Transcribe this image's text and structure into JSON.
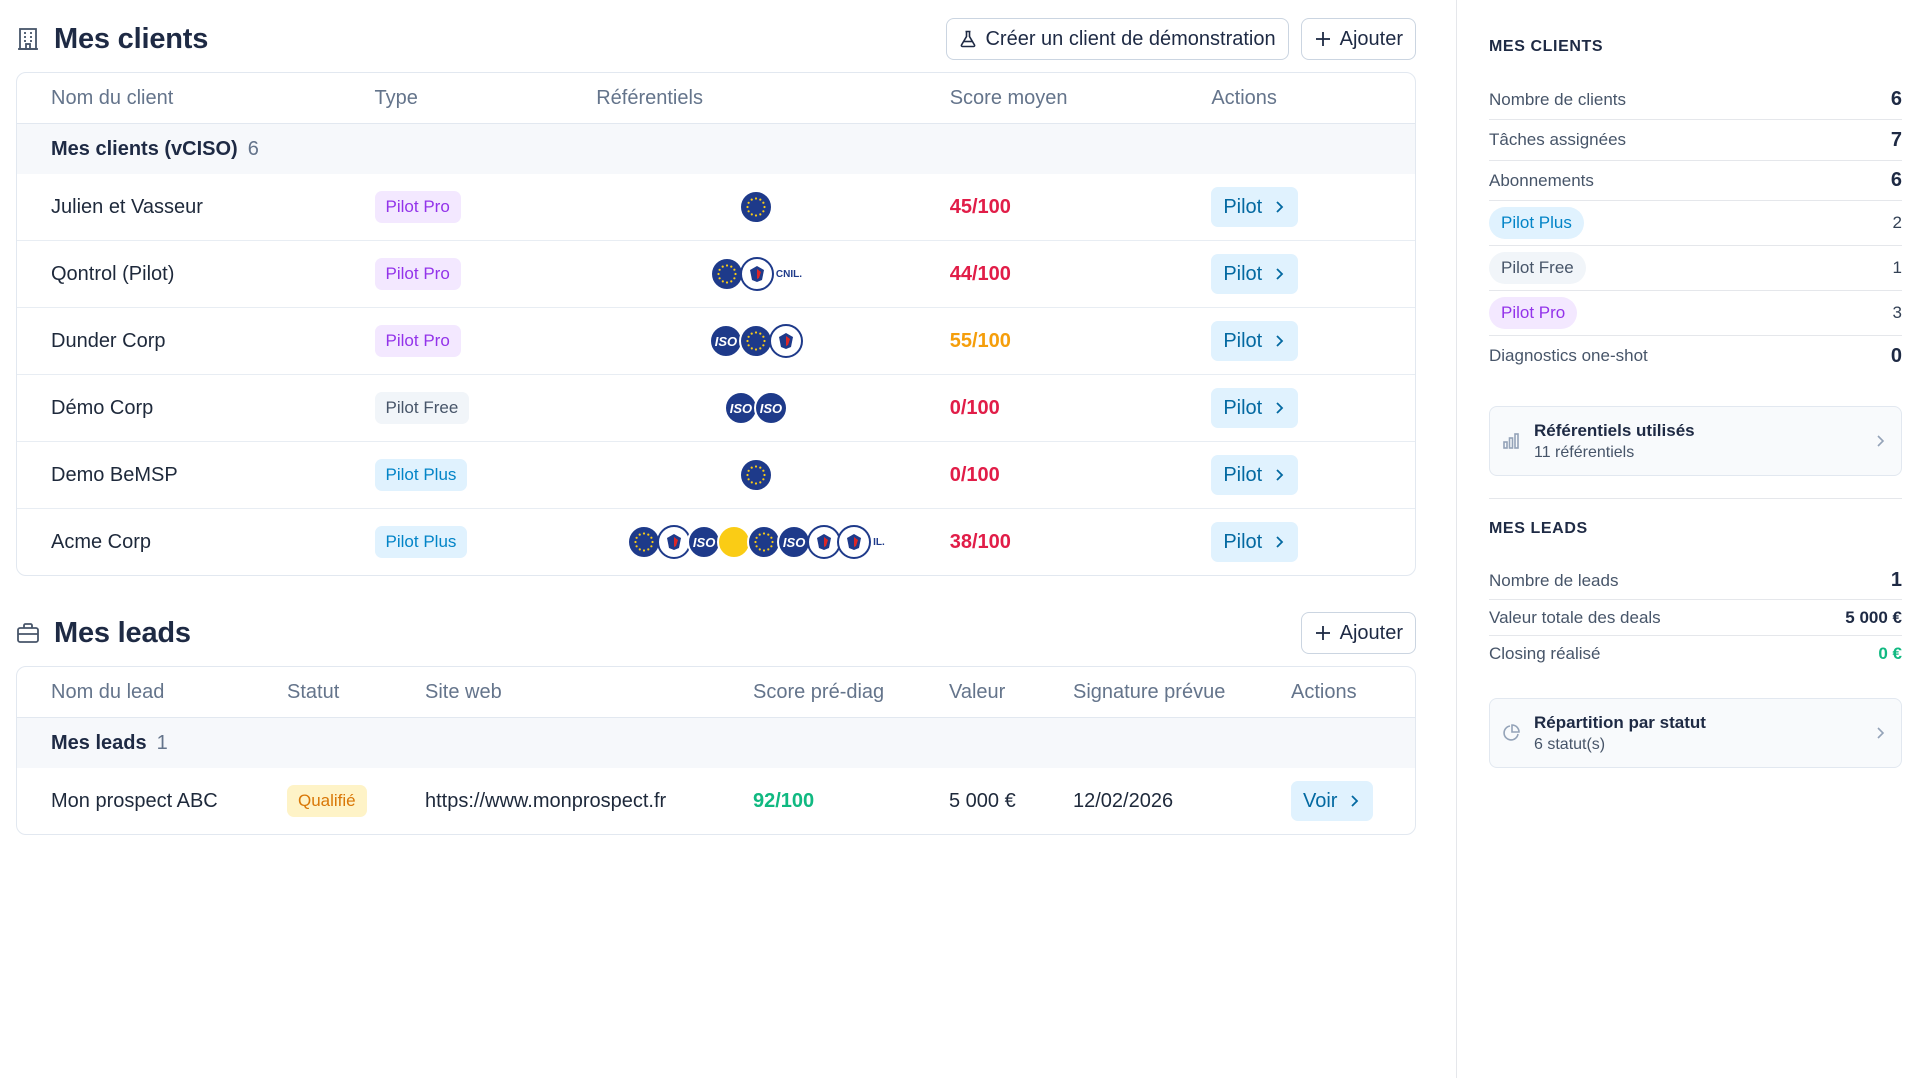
{
  "clients_section": {
    "title": "Mes clients",
    "demo_button": "Créer un client de démonstration",
    "add_button": "Ajouter",
    "columns": [
      "Nom du client",
      "Type",
      "Référentiels",
      "Score moyen",
      "Actions"
    ],
    "group": {
      "title": "Mes clients (vCISO)",
      "count": "6"
    },
    "rows": [
      {
        "name": "Julien et Vasseur",
        "type": "Pilot Pro",
        "type_style": "pro",
        "frameworks": [
          "eu"
        ],
        "score": "45/100",
        "score_color": "#e11d48",
        "action": "Pilot"
      },
      {
        "name": "Qontrol (Pilot)",
        "type": "Pilot Pro",
        "type_style": "pro",
        "frameworks": [
          "eu",
          "cnil"
        ],
        "fw_label": "CNIL.",
        "score": "44/100",
        "score_color": "#e11d48",
        "action": "Pilot"
      },
      {
        "name": "Dunder Corp",
        "type": "Pilot Pro",
        "type_style": "pro",
        "frameworks": [
          "iso",
          "eu",
          "cnil"
        ],
        "score": "55/100",
        "score_color": "#f59e0b",
        "action": "Pilot"
      },
      {
        "name": "Démo Corp",
        "type": "Pilot Free",
        "type_style": "free",
        "frameworks": [
          "iso",
          "iso"
        ],
        "score": "0/100",
        "score_color": "#e11d48",
        "action": "Pilot"
      },
      {
        "name": "Demo BeMSP",
        "type": "Pilot Plus",
        "type_style": "plus",
        "frameworks": [
          "eu"
        ],
        "score": "0/100",
        "score_color": "#e11d48",
        "action": "Pilot"
      },
      {
        "name": "Acme Corp",
        "type": "Pilot Plus",
        "type_style": "plus",
        "frameworks": [
          "eu",
          "cnil",
          "iso",
          "yel",
          "eu",
          "iso",
          "cnil",
          "cnil"
        ],
        "fw_label": "IL.",
        "score": "38/100",
        "score_color": "#e11d48",
        "action": "Pilot"
      }
    ]
  },
  "leads_section": {
    "title": "Mes leads",
    "add_button": "Ajouter",
    "columns": [
      "Nom du lead",
      "Statut",
      "Site web",
      "Score pré-diag",
      "Valeur",
      "Signature prévue",
      "Actions"
    ],
    "group": {
      "title": "Mes leads",
      "count": "1"
    },
    "rows": [
      {
        "name": "Mon prospect ABC",
        "status": "Qualifié",
        "website": "https://www.monprospect.fr",
        "score": "92/100",
        "value": "5 000 €",
        "signature": "12/02/2026",
        "action": "Voir"
      }
    ]
  },
  "sidebar": {
    "clients_heading": "MES CLIENTS",
    "nb_clients_label": "Nombre de clients",
    "nb_clients": "6",
    "tasks_label": "Tâches assignées",
    "tasks": "7",
    "subs_label": "Abonnements",
    "subs": "6",
    "plans": [
      {
        "label": "Pilot Plus",
        "style": "plus",
        "count": "2"
      },
      {
        "label": "Pilot Free",
        "style": "free",
        "count": "1"
      },
      {
        "label": "Pilot Pro",
        "style": "pro",
        "count": "3"
      }
    ],
    "diag_label": "Diagnostics one-shot",
    "diag": "0",
    "ref_card": {
      "title": "Référentiels utilisés",
      "subtitle": "11 référentiels"
    },
    "leads_heading": "MES LEADS",
    "nb_leads_label": "Nombre de leads",
    "nb_leads": "1",
    "deals_label": "Valeur totale des deals",
    "deals": "5 000 €",
    "closing_label": "Closing réalisé",
    "closing": "0 €",
    "status_card": {
      "title": "Répartition par statut",
      "subtitle": "6 statut(s)"
    }
  },
  "colors": {
    "accent_green": "#10b981",
    "score_red": "#e11d48",
    "score_orange": "#f59e0b"
  }
}
